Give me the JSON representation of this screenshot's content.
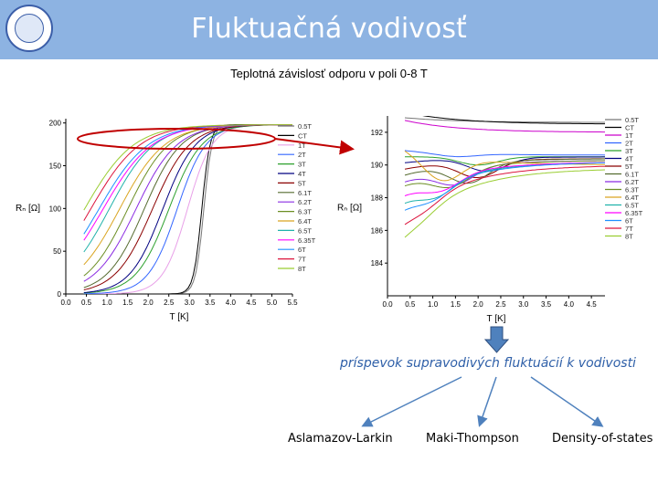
{
  "header": {
    "title": "Fluktuačná vodivosť"
  },
  "subtitle": "Teplotná závislosť odporu v poli 0-8 T",
  "note": "príspevok supravodivých fluktuácií k vodivosti",
  "categories": [
    "Aslamazov-Larkin",
    "Maki-Thompson",
    "Density-of-states"
  ],
  "colors": {
    "header_bg": "#8db3e2",
    "arrow": "#4f81bd",
    "ellipse": "#c00000"
  },
  "chart_data": [
    {
      "type": "line",
      "xlabel": "T [K]",
      "ylabel": "Rₙ [Ω]",
      "xlim": [
        0,
        5.5
      ],
      "ylim": [
        0,
        205
      ],
      "xticks": [
        "0.0",
        "0.5",
        "1.0",
        "1.5",
        "2.0",
        "2.5",
        "3.0",
        "3.5",
        "4.0",
        "4.5",
        "5.0",
        "5.5"
      ],
      "yticks": [
        "0",
        "50",
        "100",
        "150",
        "200"
      ],
      "legend_position": "right",
      "series": [
        {
          "name": "0.5T",
          "color": "#777777",
          "tc": 3.35,
          "w": 0.1
        },
        {
          "name": "CT",
          "color": "#000000",
          "tc": 3.3,
          "w": 0.1
        },
        {
          "name": "1T",
          "color": "#e8a0e8",
          "tc": 2.95,
          "w": 0.3
        },
        {
          "name": "2T",
          "color": "#3366ff",
          "tc": 2.7,
          "w": 0.35
        },
        {
          "name": "3T",
          "color": "#2ca02c",
          "tc": 2.5,
          "w": 0.4
        },
        {
          "name": "4T",
          "color": "#000080",
          "tc": 2.35,
          "w": 0.4
        },
        {
          "name": "5T",
          "color": "#8b0000",
          "tc": 2.1,
          "w": 0.45
        },
        {
          "name": "6.1T",
          "color": "#556b2f",
          "tc": 1.9,
          "w": 0.45
        },
        {
          "name": "6.2T",
          "color": "#8a2be2",
          "tc": 1.7,
          "w": 0.5
        },
        {
          "name": "6.3T",
          "color": "#6b8e23",
          "tc": 1.5,
          "w": 0.5
        },
        {
          "name": "6.4T",
          "color": "#daa520",
          "tc": 1.3,
          "w": 0.55
        },
        {
          "name": "6.5T",
          "color": "#20b2aa",
          "tc": 1.05,
          "w": 0.55
        },
        {
          "name": "6.35T",
          "color": "#ff00ff",
          "tc": 0.9,
          "w": 0.6
        },
        {
          "name": "6T",
          "color": "#1e90ff",
          "tc": 0.8,
          "w": 0.6
        },
        {
          "name": "7T",
          "color": "#dc143c",
          "tc": 0.6,
          "w": 0.6
        },
        {
          "name": "8T",
          "color": "#9acd32",
          "tc": 0.45,
          "w": 0.6
        }
      ]
    },
    {
      "type": "line",
      "xlabel": "T [K]",
      "ylabel": "Rₙ [Ω]",
      "xlim": [
        0,
        4.8
      ],
      "ylim": [
        182,
        193
      ],
      "xticks": [
        "0.0",
        "0.5",
        "1.0",
        "1.5",
        "2.0",
        "2.5",
        "3.0",
        "3.5",
        "4.0",
        "4.5"
      ],
      "yticks": [
        "184",
        "186",
        "188",
        "190",
        "192"
      ],
      "legend_position": "right",
      "series": [
        {
          "name": "0.5T",
          "color": "#777777",
          "y0": 193.0,
          "y1": 192.6,
          "dip": 0.0,
          "tm": 0.5
        },
        {
          "name": "CT",
          "color": "#000000",
          "y0": 193.5,
          "y1": 192.5,
          "dip": 0.0,
          "tm": 0.5
        },
        {
          "name": "1T",
          "color": "#cc00cc",
          "y0": 193.0,
          "y1": 192.0,
          "dip": 0.0,
          "tm": 0.5
        },
        {
          "name": "2T",
          "color": "#3366ff",
          "y0": 191.0,
          "y1": 190.6,
          "dip": 0.2,
          "tm": 1.5
        },
        {
          "name": "3T",
          "color": "#2ca02c",
          "y0": 190.5,
          "y1": 190.5,
          "dip": 0.5,
          "tm": 2.0
        },
        {
          "name": "4T",
          "color": "#000080",
          "y0": 190.0,
          "y1": 190.5,
          "dip": 0.8,
          "tm": 2.2
        },
        {
          "name": "5T",
          "color": "#8b0000",
          "y0": 189.5,
          "y1": 190.4,
          "dip": 1.0,
          "tm": 2.0
        },
        {
          "name": "6.1T",
          "color": "#556b2f",
          "y0": 189.0,
          "y1": 190.4,
          "dip": 1.2,
          "tm": 1.8
        },
        {
          "name": "6.2T",
          "color": "#8a2be2",
          "y0": 188.5,
          "y1": 190.3,
          "dip": 1.0,
          "tm": 1.5
        },
        {
          "name": "6.3T",
          "color": "#6b8e23",
          "y0": 188.2,
          "y1": 190.3,
          "dip": 1.0,
          "tm": 1.4
        },
        {
          "name": "6.4T",
          "color": "#daa520",
          "y0": 191.5,
          "y1": 190.0,
          "dip": 1.5,
          "tm": 1.2
        },
        {
          "name": "6.5T",
          "color": "#20b2aa",
          "y0": 187.0,
          "y1": 190.2,
          "dip": 0.9,
          "tm": 1.1
        },
        {
          "name": "6.35T",
          "color": "#ff00ff",
          "y0": 187.5,
          "y1": 190.2,
          "dip": 0.8,
          "tm": 1.2
        },
        {
          "name": "6T",
          "color": "#1e90ff",
          "y0": 186.5,
          "y1": 190.2,
          "dip": 0.8,
          "tm": 1.0
        },
        {
          "name": "7T",
          "color": "#dc143c",
          "y0": 185.5,
          "y1": 190.0,
          "dip": 0.6,
          "tm": 0.8
        },
        {
          "name": "8T",
          "color": "#9acd32",
          "y0": 184.5,
          "y1": 189.8,
          "dip": 0.5,
          "tm": 0.7
        }
      ]
    }
  ]
}
